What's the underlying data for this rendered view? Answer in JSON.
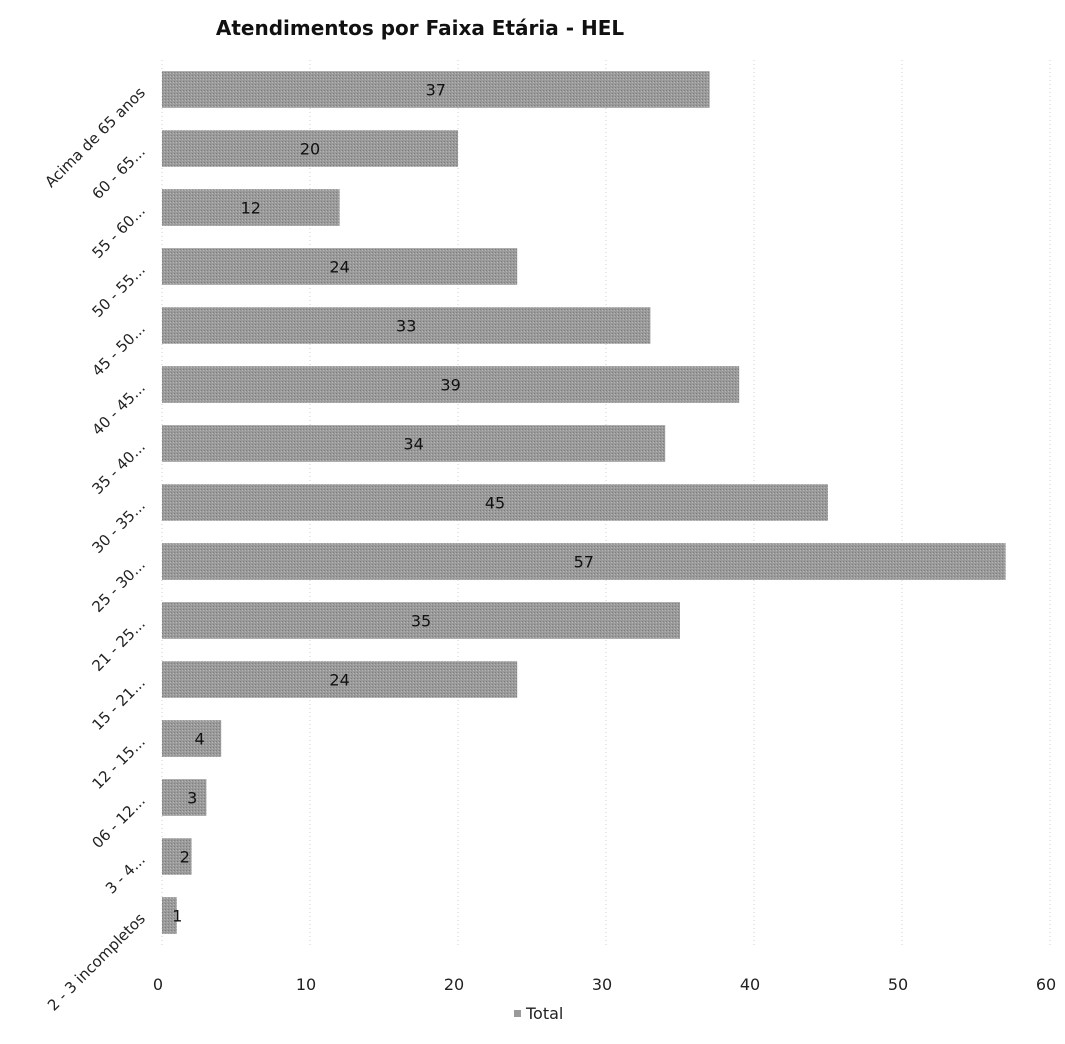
{
  "chart_data": {
    "type": "bar",
    "orientation": "horizontal",
    "title": "Atendimentos por Faixa Etária - HEL",
    "categories": [
      "Acima de 65 anos",
      "60 - 65...",
      "55 - 60...",
      "50 - 55...",
      "45 - 50...",
      "40 - 45...",
      "35 - 40...",
      "30 - 35...",
      "25 - 30...",
      "21 - 25...",
      "15 - 21...",
      "12 - 15...",
      "06 - 12...",
      "3 - 4...",
      "2 - 3 incompletos"
    ],
    "series": [
      {
        "name": "Total",
        "values": [
          37,
          20,
          12,
          24,
          33,
          39,
          34,
          45,
          57,
          35,
          24,
          4,
          3,
          2,
          1
        ]
      }
    ],
    "xlim": [
      0,
      60
    ],
    "xticks": [
      "0",
      "10",
      "20",
      "30",
      "40",
      "50",
      "60"
    ],
    "grid": true,
    "legend": "bottom",
    "bar_color": "#9a9a9a"
  }
}
